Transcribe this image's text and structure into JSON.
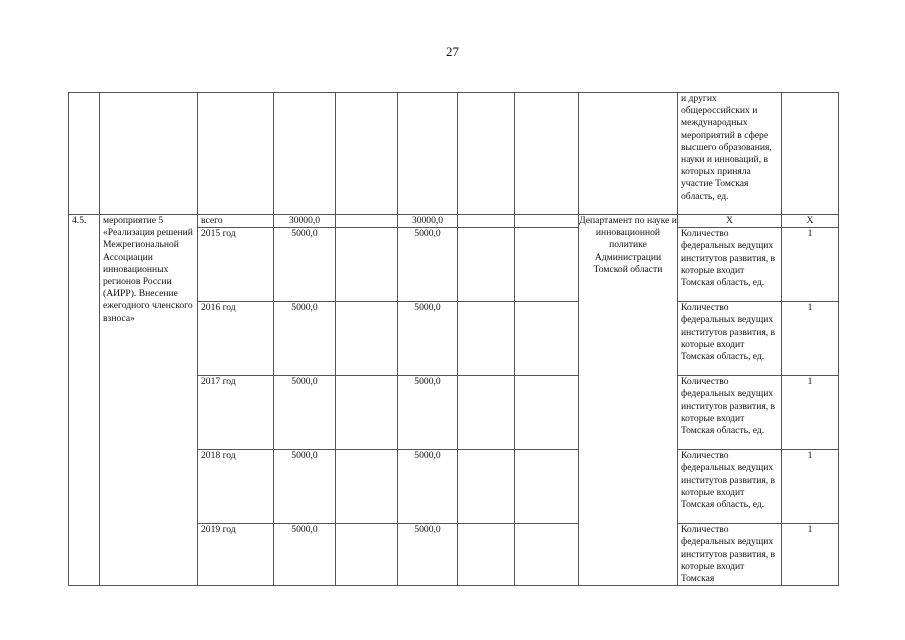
{
  "page_number": "27",
  "top_row": {
    "indicator_text": "и других общероссийских и международных мероприятий в сфере высшего образования, науки и инноваций, в которых приняла участие Томская область, ед."
  },
  "item": {
    "number": "4.5.",
    "name": "мероприятие 5 «Реализация решений Межрегиональной Ассоциации инновационных регионов России (АИРР). Внесение ежегодного членского взноса»",
    "executor": "Департамент по науке и инновационной политике Администрации Томской области",
    "total_row": {
      "period": "всего",
      "total": "30000,0",
      "col5": "",
      "regional": "30000,0",
      "indicator": "Х",
      "value": "Х"
    },
    "years": [
      {
        "period": "2015 год",
        "total": "5000,0",
        "regional": "5000,0",
        "indicator": "Количество федеральных ведущих институтов развития, в которые входит Томская область, ед.",
        "value": "1"
      },
      {
        "period": "2016 год",
        "total": "5000,0",
        "regional": "5000,0",
        "indicator": "Количество федеральных ведущих институтов развития, в которые входит Томская область, ед.",
        "value": "1"
      },
      {
        "period": "2017 год",
        "total": "5000,0",
        "regional": "5000,0",
        "indicator": "Количество федеральных ведущих институтов развития, в которые входит Томская область, ед.",
        "value": "1"
      },
      {
        "period": "2018 год",
        "total": "5000,0",
        "regional": "5000,0",
        "indicator": "Количество федеральных ведущих институтов развития, в которые входит Томская область, ед.",
        "value": "1"
      },
      {
        "period": "2019 год",
        "total": "5000,0",
        "regional": "5000,0",
        "indicator": "Количество федеральных ведущих институтов развития, в которые входит Томская",
        "value": "1"
      }
    ]
  }
}
